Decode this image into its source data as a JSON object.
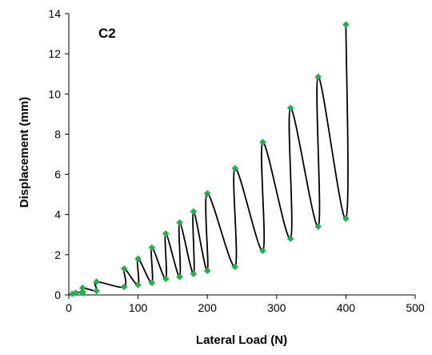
{
  "chart_data": {
    "type": "scatter",
    "title": "",
    "annotation": "C2",
    "xlabel": "Lateral Load (N)",
    "ylabel": "Displacement (mm)",
    "xlim": [
      0,
      500
    ],
    "ylim": [
      0,
      14
    ],
    "xticks": [
      0,
      100,
      200,
      300,
      400,
      500
    ],
    "yticks": [
      0,
      2,
      4,
      6,
      8,
      10,
      12,
      14
    ],
    "grid": false,
    "legend": "none",
    "line_color": "#000000",
    "marker_color": "#22b14c",
    "marker_shape": "diamond",
    "series": [
      {
        "points": [
          [
            5,
            0.05
          ],
          [
            10,
            0.1
          ],
          [
            20,
            0.15
          ],
          [
            20,
            0.1
          ],
          [
            20,
            0.35
          ],
          [
            40,
            0.2
          ],
          [
            40,
            0.65
          ],
          [
            80,
            0.4
          ],
          [
            80,
            1.3
          ],
          [
            100,
            0.5
          ],
          [
            100,
            1.8
          ],
          [
            120,
            0.6
          ],
          [
            120,
            2.35
          ],
          [
            140,
            0.8
          ],
          [
            140,
            3.05
          ],
          [
            160,
            0.9
          ],
          [
            160,
            3.6
          ],
          [
            180,
            1.05
          ],
          [
            180,
            4.15
          ],
          [
            200,
            1.2
          ],
          [
            200,
            5.05
          ],
          [
            240,
            1.4
          ],
          [
            240,
            6.3
          ],
          [
            280,
            2.2
          ],
          [
            280,
            7.6
          ],
          [
            320,
            2.8
          ],
          [
            320,
            9.3
          ],
          [
            360,
            3.4
          ],
          [
            360,
            10.85
          ],
          [
            400,
            3.8
          ],
          [
            400,
            13.45
          ]
        ]
      }
    ]
  }
}
